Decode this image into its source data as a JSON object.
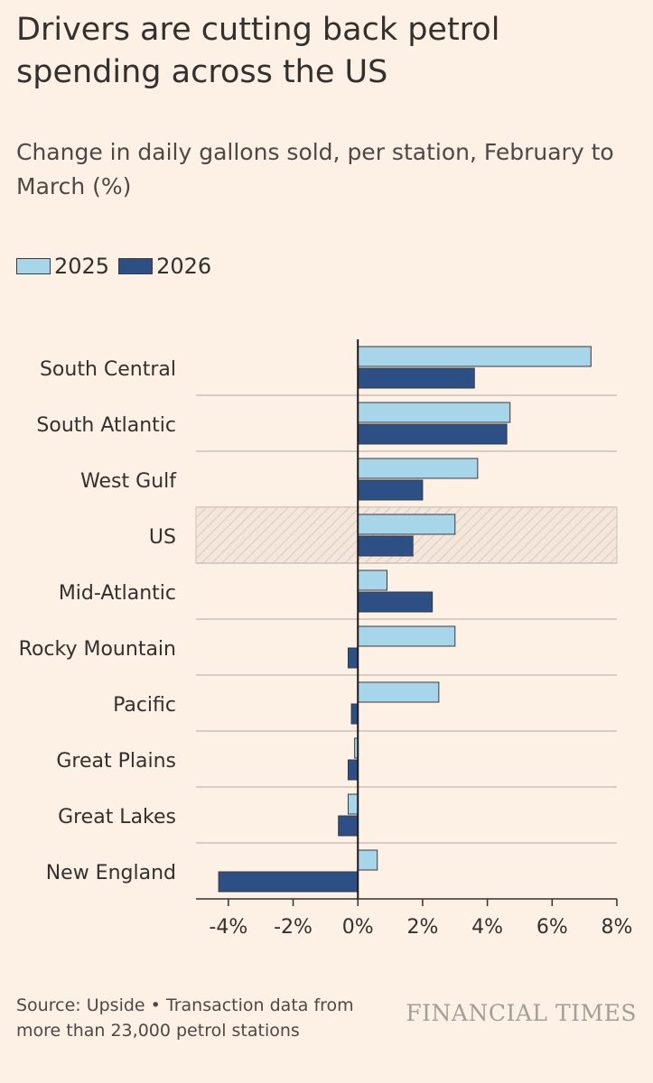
{
  "title": "Drivers are cutting back petrol spending across the US",
  "subtitle": "Change in daily gallons sold, per station, February to March (%)",
  "legend": [
    {
      "label": "2025",
      "color": "#a7d6ea"
    },
    {
      "label": "2026",
      "color": "#2c4f85"
    }
  ],
  "chart_data": {
    "type": "bar",
    "orientation": "horizontal",
    "title": "Drivers are cutting back petrol spending across the US",
    "subtitle": "Change in daily gallons sold, per station, February to March (%)",
    "xlabel": "",
    "ylabel": "",
    "xlim": [
      -5,
      8
    ],
    "xticks": [
      -4,
      -2,
      0,
      2,
      4,
      6,
      8
    ],
    "xtick_labels": [
      "-4%",
      "-2%",
      "0%",
      "2%",
      "4%",
      "6%",
      "8%"
    ],
    "categories": [
      "South Central",
      "South Atlantic",
      "West Gulf",
      "US",
      "Mid-Atlantic",
      "Rocky Mountain",
      "Pacific",
      "Great Plains",
      "Great Lakes",
      "New England"
    ],
    "highlight": "US",
    "series": [
      {
        "name": "2025",
        "color": "#a7d6ea",
        "values": [
          7.2,
          4.7,
          3.7,
          3.0,
          0.9,
          3.0,
          2.5,
          -0.1,
          -0.3,
          0.6
        ]
      },
      {
        "name": "2026",
        "color": "#2c4f85",
        "values": [
          3.6,
          4.6,
          2.0,
          1.7,
          2.3,
          -0.3,
          -0.2,
          -0.3,
          -0.6,
          -4.3
        ]
      }
    ],
    "legend": "top-left"
  },
  "source": "Source: Upside • Transaction data from more than 23,000 petrol stations",
  "logo_text": "FINANCIAL TIMES"
}
